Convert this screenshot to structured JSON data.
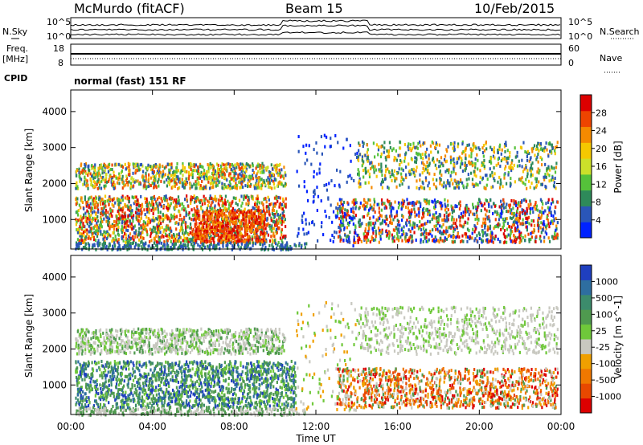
{
  "header": {
    "station": "McMurdo (fitACF)",
    "beam": "Beam 15",
    "date": "10/Feb/2015"
  },
  "top_panels": {
    "nsky_label": "N.Sky",
    "nsky_ticks": [
      "10^5",
      "10^0"
    ],
    "nsearch_label": "N.Search",
    "nsearch_ticks": [
      "10^5",
      "10^0"
    ],
    "freq_label": "Freq.",
    "freq_unit": "[MHz]",
    "freq_ticks": [
      "18",
      "8"
    ],
    "nave_label": "Nave",
    "nave_ticks": [
      "60",
      "0"
    ],
    "cpid_label": "CPID",
    "cpid_text": "normal (fast) 151 RF"
  },
  "chart_data": [
    {
      "type": "heatmap",
      "title": "",
      "xlabel": "",
      "ylabel": "Slant Range [km]",
      "x_ticks": [
        "00:00",
        "04:00",
        "08:00",
        "12:00",
        "16:00",
        "20:00",
        "00:00"
      ],
      "y_ticks": [
        "1000",
        "2000",
        "3000",
        "4000"
      ],
      "ylim": [
        180,
        4600
      ],
      "colorbar": {
        "label": "Power [dB]",
        "ticks": [
          "4",
          "8",
          "12",
          "16",
          "20",
          "24",
          "28"
        ],
        "colors": [
          "#0022ff",
          "#2a56b8",
          "#2e8a5a",
          "#55c23a",
          "#cce02a",
          "#f5c800",
          "#f58a00",
          "#ee4400",
          "#dd0000"
        ]
      }
    },
    {
      "type": "heatmap",
      "title": "",
      "xlabel": "Time UT",
      "ylabel": "Slant Range [km]",
      "x_ticks": [
        "00:00",
        "04:00",
        "08:00",
        "12:00",
        "16:00",
        "20:00",
        "00:00"
      ],
      "y_ticks": [
        "1000",
        "2000",
        "3000",
        "4000"
      ],
      "ylim": [
        180,
        4600
      ],
      "colorbar": {
        "label": "Velocity [m s^-1]",
        "ticks": [
          "1000",
          "500",
          "100",
          "25",
          "-25",
          "-100",
          "-500",
          "-1000"
        ],
        "colors": [
          "#1f3fbf",
          "#2e6ea0",
          "#3c8c6c",
          "#4f9a4f",
          "#6fc83a",
          "#c8c8c0",
          "#f0a000",
          "#f07800",
          "#e84800",
          "#dd0000"
        ]
      }
    }
  ]
}
